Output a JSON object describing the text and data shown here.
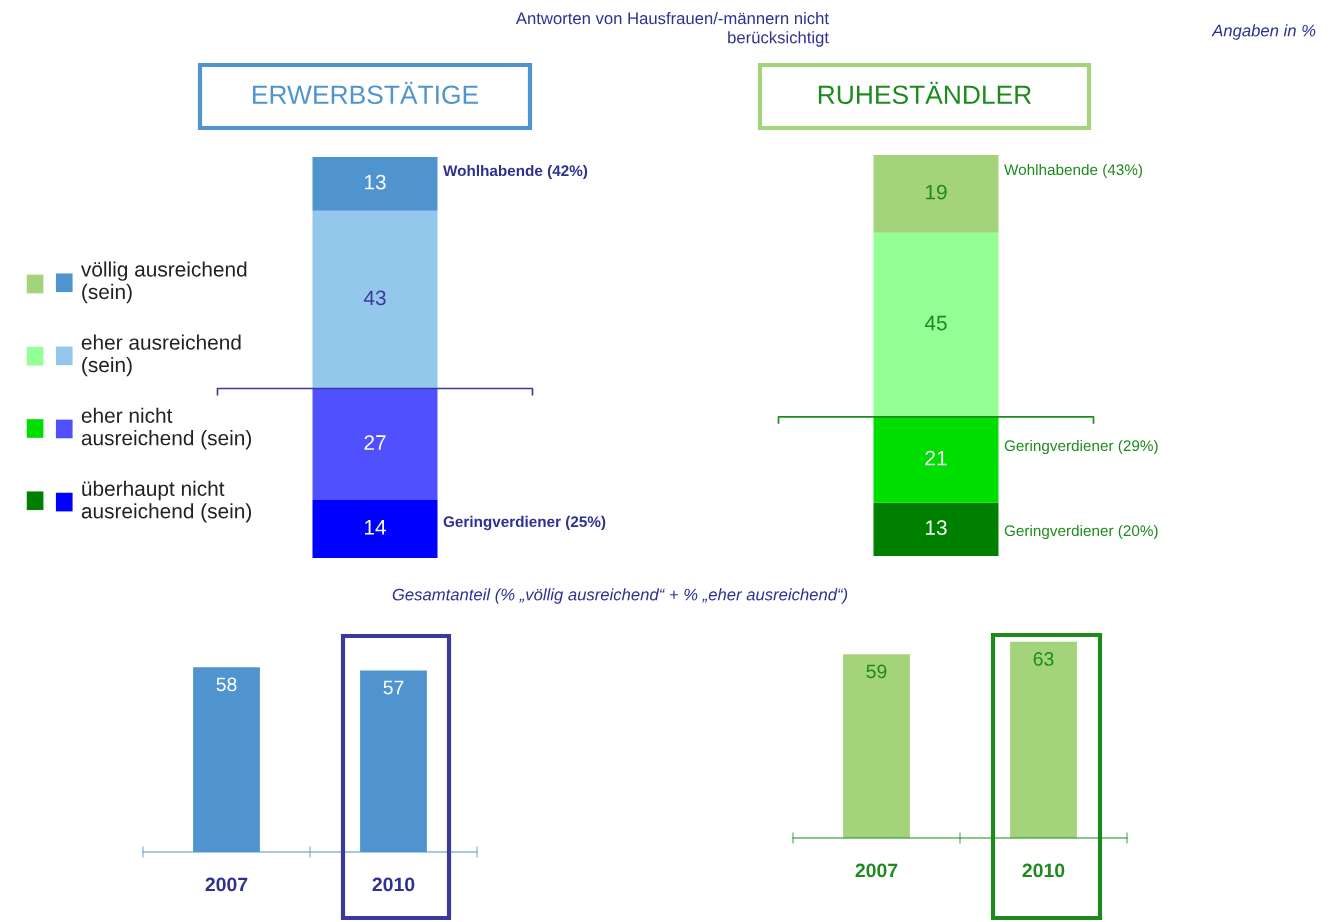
{
  "chart_data": [
    {
      "type": "bar",
      "stacked": true,
      "title": "ERWERBSTÄTIGE",
      "categories": [
        null
      ],
      "data_labels": true,
      "legend": "left",
      "series": [
        {
          "name": "überhaupt nicht\nausreichend (sein)",
          "color": "#0000ff",
          "values": [
            14
          ]
        },
        {
          "name": "eher nicht\nausreichend (sein)",
          "color": "#5050ff",
          "values": [
            27
          ]
        },
        {
          "name": "eher ausreichend\n(sein)",
          "color": "#93c8ec",
          "values": [
            43
          ]
        },
        {
          "name": "völlig ausreichend\n(sein)",
          "color": "#4f93cf",
          "values": [
            13
          ]
        }
      ],
      "ref_lines": [
        {
          "axis": "y",
          "value": 41,
          "color": "#3a3a9a"
        }
      ],
      "annotations": [
        "Antworten von Hausfrauen/-männern nicht\nberücksichtigt",
        "Angaben in %",
        "Wohlhabende (42%)",
        "Geringverdiener (25%)"
      ]
    },
    {
      "type": "bar",
      "stacked": true,
      "title": "RUHESTÄNDLER",
      "categories": [
        null
      ],
      "data_labels": true,
      "series": [
        {
          "color": "#008000",
          "values": [
            13
          ]
        },
        {
          "color": "#00dd00",
          "values": [
            21
          ]
        },
        {
          "color": "#94ff94",
          "values": [
            45
          ]
        },
        {
          "color": "#a3d37a",
          "values": [
            19
          ]
        }
      ],
      "ref_lines": [
        {
          "axis": "y",
          "value": 34,
          "color": "#1e8a1e"
        }
      ],
      "annotations": [
        "Wohlhabende (43%)",
        "Geringverdiener (29%)",
        "Geringverdiener (20%)"
      ]
    },
    {
      "type": "bar",
      "title": "Gesamtanteil (% „völlig ausreichend“ + % „eher ausreichend“)",
      "categories": [
        "2007",
        "2010"
      ],
      "values": [
        58,
        57
      ],
      "color": "#4f93cf",
      "data_labels": true
    },
    {
      "type": "bar",
      "categories": [
        "2007",
        "2010"
      ],
      "values": [
        59,
        63
      ],
      "color": "#a3d37a",
      "data_labels": true
    }
  ]
}
